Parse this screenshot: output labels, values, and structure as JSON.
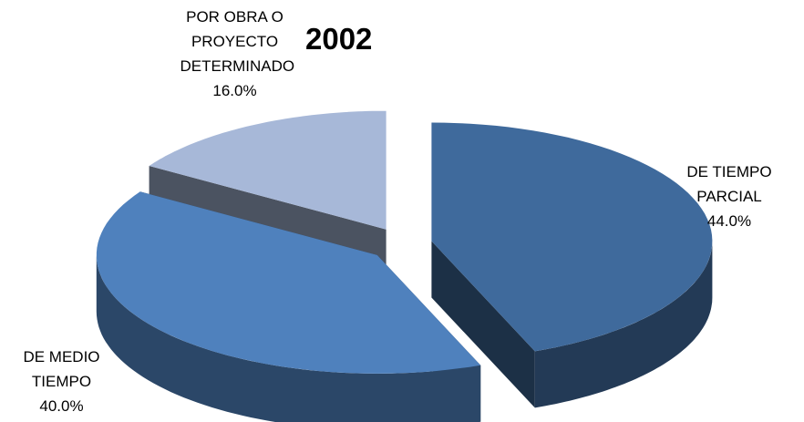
{
  "chart_data": {
    "type": "pie3d",
    "title": "2002",
    "categories": [
      "DE TIEMPO PARCIAL",
      "DE MEDIO TIEMPO",
      "POR OBRA O PROYECTO DETERMINADO"
    ],
    "values": [
      44,
      40,
      16
    ],
    "value_labels": [
      "44.0%",
      "40.0%",
      "16.0%"
    ],
    "colors": [
      "#3f6a9c",
      "#4f81bd",
      "#a7b8d8"
    ]
  }
}
